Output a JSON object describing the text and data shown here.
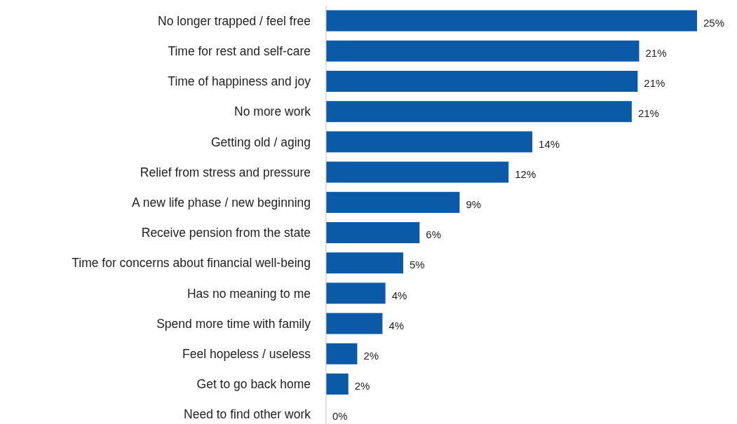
{
  "chart_data": {
    "type": "bar",
    "orientation": "horizontal",
    "color": "#0b5aa8",
    "categories": [
      "No longer trapped / feel free",
      "Time for rest and self-care",
      "Time of happiness and joy",
      "No more work",
      "Getting old / aging",
      "Relief from stress and pressure",
      "A new life phase / new beginning",
      "Receive pension from the state",
      "Time for concerns about financial well-being",
      "Has no meaning to me",
      "Spend more time with family",
      "Feel hopeless / useless",
      "Get to go back home",
      "Need to find other work"
    ],
    "values": [
      25,
      21.1,
      21,
      20.6,
      13.9,
      12.3,
      9,
      6.3,
      5.2,
      4,
      3.8,
      2.1,
      1.5,
      0
    ],
    "value_labels": [
      "25%",
      "21%",
      "21%",
      "21%",
      "14%",
      "12%",
      "9%",
      "6%",
      "5%",
      "4%",
      "4%",
      "2%",
      "2%",
      "0%"
    ]
  }
}
